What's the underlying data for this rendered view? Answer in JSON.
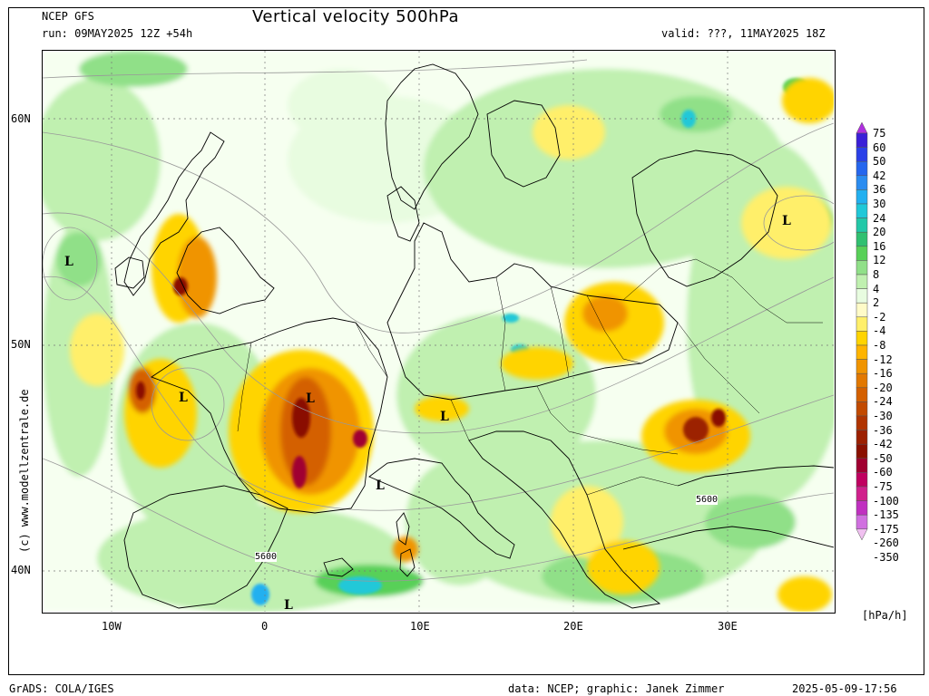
{
  "header": {
    "model": "NCEP GFS",
    "run": "run: 09MAY2025 12Z +54h",
    "title": "Vertical velocity 500hPa",
    "valid": "valid: ???, 11MAY2025 18Z"
  },
  "axes": {
    "lat_labels": [
      "60N",
      "50N",
      "40N"
    ],
    "lon_labels": [
      "10W",
      "0",
      "10E",
      "20E",
      "30E"
    ]
  },
  "credit_vertical": "(c) www.modellzentrale.de",
  "legend": {
    "levels": [
      "75",
      "60",
      "50",
      "42",
      "36",
      "30",
      "24",
      "20",
      "16",
      "12",
      "8",
      "4",
      "2",
      "-2",
      "-4",
      "-8",
      "-12",
      "-16",
      "-20",
      "-24",
      "-30",
      "-36",
      "-42",
      "-50",
      "-60",
      "-75",
      "-100",
      "-135",
      "-175",
      "-260",
      "-350"
    ],
    "colors": [
      "#b030e0",
      "#3a1fd8",
      "#2a40e8",
      "#2566ee",
      "#2a8cf0",
      "#22b0f0",
      "#20c8d8",
      "#22c8a8",
      "#30c070",
      "#58d058",
      "#90e088",
      "#c0f0b0",
      "#e8fce0",
      "#fffbc8",
      "#ffef6a",
      "#ffd400",
      "#ffb400",
      "#f09400",
      "#e27800",
      "#d46000",
      "#c24a00",
      "#b03400",
      "#9c2000",
      "#8a1000",
      "#a00030",
      "#c00060",
      "#d0208c",
      "#c030c0",
      "#d070e0",
      "#f0c0f0"
    ],
    "unit": "[hPa/h]"
  },
  "map": {
    "low_labels": [
      "L",
      "L",
      "L",
      "L",
      "L",
      "L",
      "L"
    ],
    "contour_labels": [
      "5600",
      "5600"
    ]
  },
  "footer": {
    "left": "GrADS: COLA/IGES",
    "center": "data: NCEP; graphic: Janek Zimmer",
    "right": "2025-05-09-17:56"
  }
}
